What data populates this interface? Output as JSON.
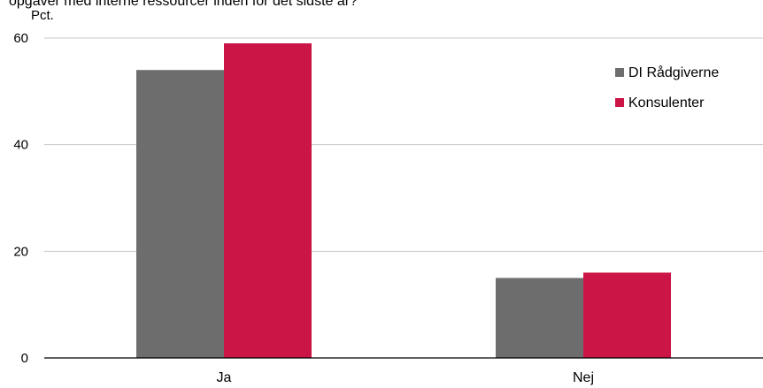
{
  "header": {
    "clipped_title": "opgaver med interne ressourcer inden for det sidste år?"
  },
  "chart_data": {
    "type": "bar",
    "title": "opgaver med interne ressourcer inden for det sidste år?",
    "unit_label": "Pct.",
    "categories": [
      "Ja",
      "Nej"
    ],
    "series": [
      {
        "name": "DI Rådgiverne",
        "values": [
          54,
          15
        ],
        "color": "#6d6d6d"
      },
      {
        "name": "Konsulenter",
        "values": [
          59,
          16
        ],
        "color": "#cc1547"
      }
    ],
    "ylim": [
      0,
      60
    ],
    "yticks": [
      0,
      20,
      40,
      60
    ],
    "grid": true,
    "legend": "top-right"
  }
}
